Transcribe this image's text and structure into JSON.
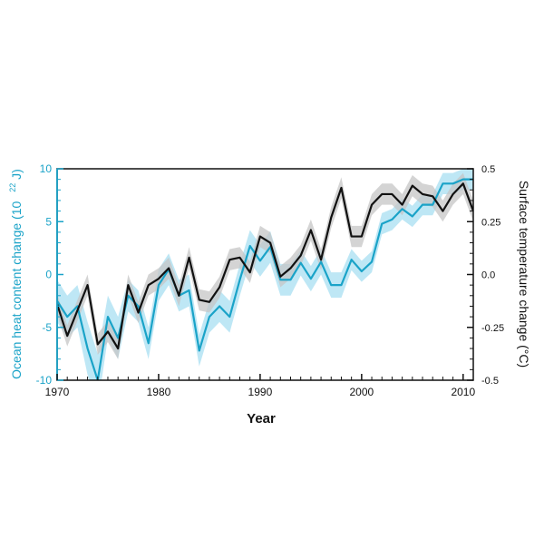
{
  "chart_data": {
    "type": "line",
    "title": "",
    "xlabel": "Year",
    "ylabel_left": "Ocean heat content change (10",
    "ylabel_left_exponent": "22",
    "ylabel_left_unit": " J)",
    "ylabel_right": "Surface temperature change (°C)",
    "xlim": [
      1970,
      2011
    ],
    "ylim_left": [
      -10,
      10
    ],
    "ylim_right": [
      -0.5,
      0.5
    ],
    "x_ticks": [
      1970,
      1980,
      1990,
      2000,
      2010
    ],
    "y_ticks_left": [
      10,
      5,
      0,
      -5,
      -10
    ],
    "y_ticks_left_labels": [
      "10",
      "5",
      "0",
      "-5",
      "-10"
    ],
    "y_ticks_right": [
      0.5,
      0.25,
      0,
      -0.25,
      -0.5
    ],
    "y_ticks_right_labels": [
      "0.5",
      "0.25",
      "0.0",
      "-0.25",
      "-0.5"
    ],
    "grid": false,
    "legend": "none",
    "colors": {
      "ocean_line": "#1aa3c8",
      "ocean_band": "#b3e3f3",
      "temperature_line": "#111111",
      "temperature_band": "#c6c6c6",
      "left_axis": "#1aa3c8",
      "right_axis": "#111111"
    },
    "series": [
      {
        "axis": "left",
        "x": [
          1970,
          1971,
          1972,
          1973,
          1974,
          1975,
          1976,
          1977,
          1978,
          1979,
          1980,
          1981,
          1982,
          1983,
          1984,
          1985,
          1986,
          1987,
          1988,
          1989,
          1990,
          1991,
          1992,
          1993,
          1994,
          1995,
          1996,
          1997,
          1998,
          1999,
          2000,
          2001,
          2002,
          2003,
          2004,
          2005,
          2006,
          2007,
          2008,
          2009,
          2010,
          2011
        ],
        "values": [
          -2.5,
          -4,
          -3,
          -7,
          -10,
          -4,
          -6,
          -2,
          -3,
          -6.5,
          -1,
          0.5,
          -2,
          -1.5,
          -7.2,
          -4,
          -3,
          -4,
          -0.5,
          2.7,
          1.3,
          2.6,
          -0.5,
          -0.5,
          1.1,
          -0.4,
          1.2,
          -1,
          -1,
          1.4,
          0.3,
          1.2,
          4.8,
          5.2,
          6.2,
          5.5,
          6.6,
          6.6,
          8.6,
          8.6,
          9,
          9
        ],
        "band": [
          2,
          2,
          2,
          2.5,
          2.5,
          2,
          2,
          1.5,
          1.5,
          1.5,
          1.5,
          1.5,
          1.5,
          1.5,
          1.5,
          1.5,
          1.5,
          1.5,
          1.5,
          1.5,
          1.5,
          1.5,
          1.5,
          1.5,
          1.2,
          1.2,
          1.2,
          1.2,
          1.2,
          1,
          1,
          1,
          1,
          1,
          1,
          1,
          1,
          1,
          1,
          1,
          1,
          1
        ]
      },
      {
        "axis": "right",
        "x": [
          1970,
          1971,
          1972,
          1973,
          1974,
          1975,
          1976,
          1977,
          1978,
          1979,
          1980,
          1981,
          1982,
          1983,
          1984,
          1985,
          1986,
          1987,
          1988,
          1989,
          1990,
          1991,
          1992,
          1993,
          1994,
          1995,
          1996,
          1997,
          1998,
          1999,
          2000,
          2001,
          2002,
          2003,
          2004,
          2005,
          2006,
          2007,
          2008,
          2009,
          2010,
          2011
        ],
        "values": [
          -0.14,
          -0.29,
          -0.17,
          -0.05,
          -0.33,
          -0.27,
          -0.35,
          -0.05,
          -0.18,
          -0.05,
          -0.02,
          0.03,
          -0.1,
          0.08,
          -0.12,
          -0.13,
          -0.06,
          0.07,
          0.08,
          0.01,
          0.18,
          0.15,
          -0.01,
          0.03,
          0.09,
          0.21,
          0.07,
          0.27,
          0.41,
          0.18,
          0.18,
          0.33,
          0.38,
          0.38,
          0.33,
          0.42,
          0.38,
          0.37,
          0.3,
          0.38,
          0.43,
          0.3
        ],
        "band": [
          0.05,
          0.05,
          0.05,
          0.05,
          0.05,
          0.05,
          0.05,
          0.05,
          0.05,
          0.05,
          0.05,
          0.05,
          0.05,
          0.05,
          0.05,
          0.05,
          0.05,
          0.05,
          0.05,
          0.05,
          0.05,
          0.05,
          0.05,
          0.05,
          0.05,
          0.05,
          0.05,
          0.05,
          0.05,
          0.05,
          0.05,
          0.05,
          0.05,
          0.05,
          0.05,
          0.05,
          0.05,
          0.05,
          0.05,
          0.05,
          0.05,
          0.05
        ]
      }
    ]
  }
}
